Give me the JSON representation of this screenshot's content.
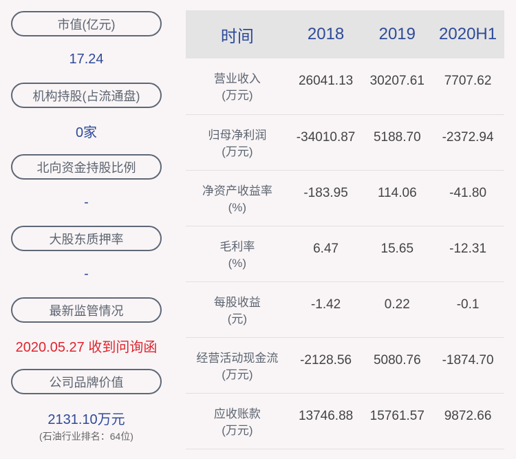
{
  "left": [
    {
      "label": "市值(亿元)",
      "value": "17.24"
    },
    {
      "label": "机构持股(占流通盘)",
      "value": "0家"
    },
    {
      "label": "北向资金持股比例",
      "value": "-"
    },
    {
      "label": "大股东质押率",
      "value": "-"
    },
    {
      "label": "最新监管情况",
      "value": "2020.05.27 收到问询函"
    },
    {
      "label": "公司品牌价值",
      "value": "2131.10万元",
      "note": "(石油行业排名：64位)"
    }
  ],
  "table": {
    "headers": [
      "时间",
      "2018",
      "2019",
      "2020H1"
    ],
    "rows": [
      {
        "label": "营业收入",
        "unit": "(万元)",
        "values": [
          "26041.13",
          "30207.61",
          "7707.62"
        ]
      },
      {
        "label": "归母净利润",
        "unit": "(万元)",
        "values": [
          "-34010.87",
          "5188.70",
          "-2372.94"
        ]
      },
      {
        "label": "净资产收益率",
        "unit": "(%)",
        "values": [
          "-183.95",
          "114.06",
          "-41.80"
        ]
      },
      {
        "label": "毛利率",
        "unit": "(%)",
        "values": [
          "6.47",
          "15.65",
          "-12.31"
        ]
      },
      {
        "label": "每股收益",
        "unit": "(元)",
        "values": [
          "-1.42",
          "0.22",
          "-0.1"
        ]
      },
      {
        "label": "经营活动现金流",
        "unit": "(万元)",
        "values": [
          "-2128.56",
          "5080.76",
          "-1874.70"
        ]
      },
      {
        "label": "应收账款",
        "unit": "(万元)",
        "values": [
          "13746.88",
          "15761.57",
          "9872.66"
        ]
      }
    ]
  },
  "colors": {
    "accent": "#2e4a99",
    "alert": "#e0232e",
    "header_bg": "#e4e4e4"
  }
}
